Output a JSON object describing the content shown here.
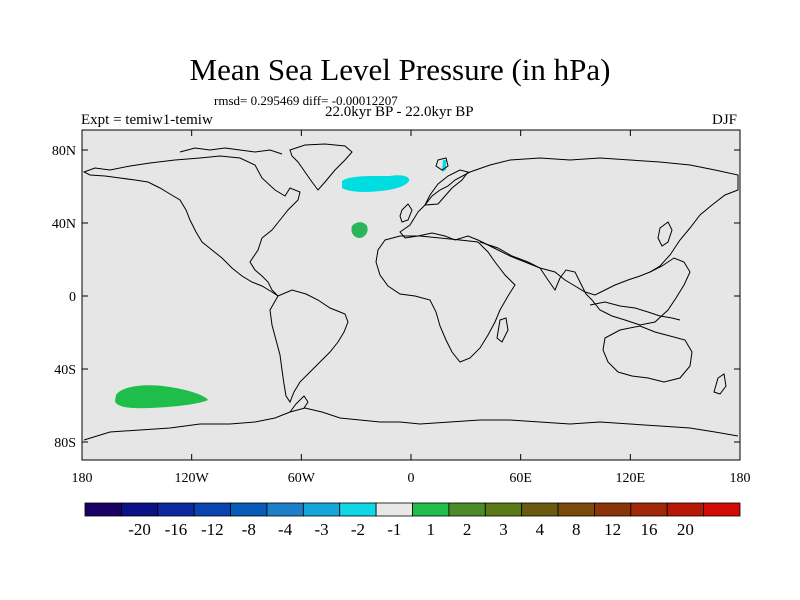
{
  "title": "Mean Sea Level Pressure (in hPa)",
  "stats": "rmsd= 0.295469 diff= -0.00012207",
  "period": "22.0kyr BP - 22.0kyr BP",
  "experiment": "Expt = temiw1-temiw",
  "season": "DJF",
  "map": {
    "background_color": "#e6e6e6",
    "lat_ticks": [
      {
        "label": "80N",
        "lat": 80
      },
      {
        "label": "40N",
        "lat": 40
      },
      {
        "label": "0",
        "lat": 0
      },
      {
        "label": "40S",
        "lat": -40
      },
      {
        "label": "80S",
        "lat": -80
      }
    ],
    "lon_ticks": [
      {
        "label": "180",
        "lon": -180
      },
      {
        "label": "120W",
        "lon": -120
      },
      {
        "label": "60W",
        "lon": -60
      },
      {
        "label": "0",
        "lon": 0
      },
      {
        "label": "60E",
        "lon": 60
      },
      {
        "label": "120E",
        "lon": 120
      },
      {
        "label": "180",
        "lon": 180
      }
    ],
    "anomalies": [
      {
        "name": "nordic-seas-negative",
        "color": "#00dde0",
        "value_range": "-2 to -1"
      },
      {
        "name": "north-atlantic-positive",
        "color": "#2ab55a",
        "value_range": "1 to 2"
      },
      {
        "name": "south-pacific-positive",
        "color": "#1fbd4a",
        "value_range": "1 to 2"
      }
    ]
  },
  "colorbar": {
    "colors": [
      "#1a0064",
      "#0a1285",
      "#0b2aa0",
      "#0a44b0",
      "#0a5bb8",
      "#1c7fc8",
      "#14a6d8",
      "#12d6e6",
      "#e8e8e8",
      "#20bd4a",
      "#4a8c28",
      "#5a7a18",
      "#6a5a10",
      "#7a4a0a",
      "#8a340a",
      "#a02808",
      "#b81806",
      "#d40c06"
    ],
    "labels": [
      "-20",
      "-16",
      "-12",
      "-8",
      "-4",
      "-3",
      "-2",
      "-1",
      "1",
      "2",
      "3",
      "4",
      "8",
      "12",
      "16",
      "20"
    ]
  }
}
